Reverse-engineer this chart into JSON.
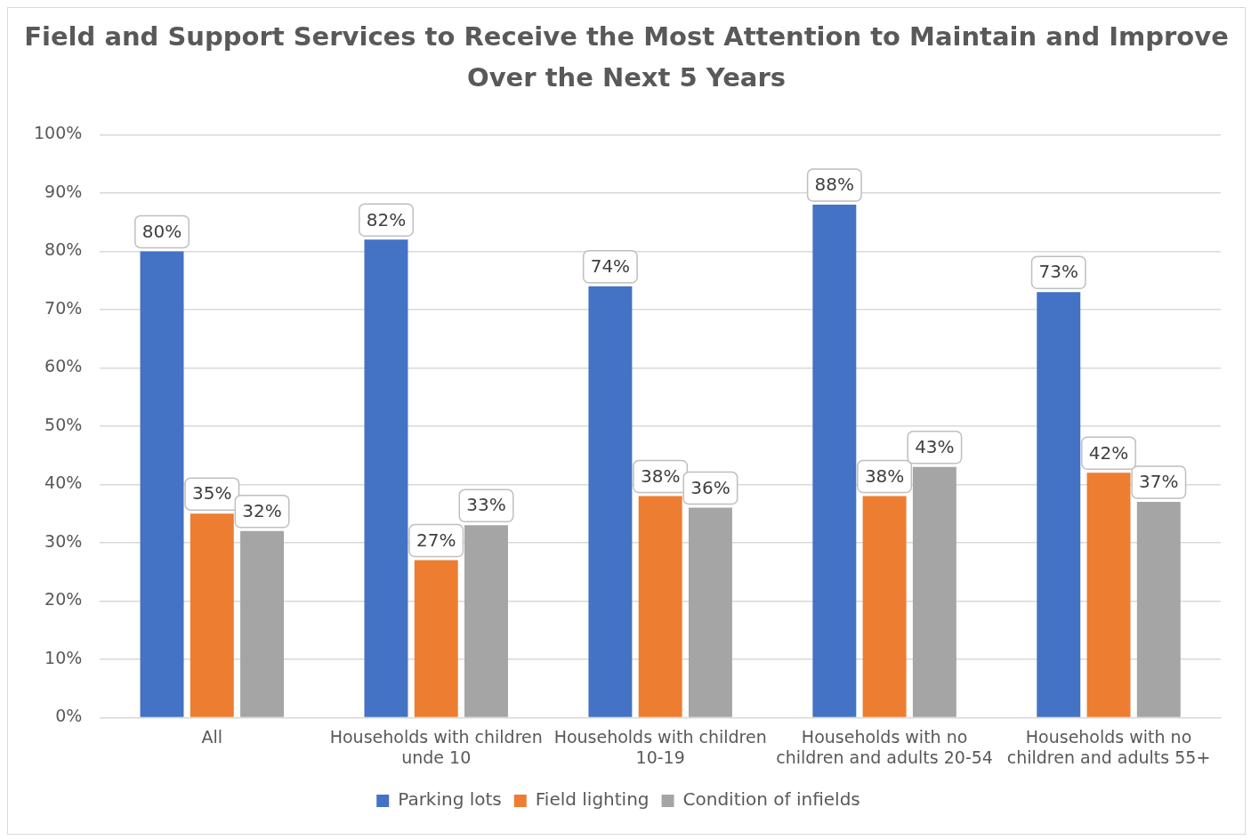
{
  "chart_data": {
    "type": "bar",
    "title": "Field and Support Services to Receive the Most Attention to Maintain and Improve Over the Next 5 Years",
    "categories": [
      "All",
      "Households with children unde 10",
      "Households with children 10-19",
      "Households with no children and adults 20-54",
      "Households with no children and adults 55+"
    ],
    "series": [
      {
        "name": "Parking lots",
        "color": "#4472c4",
        "values": [
          80,
          82,
          74,
          88,
          73
        ],
        "value_labels": [
          "80%",
          "82%",
          "74%",
          "88%",
          "73%"
        ]
      },
      {
        "name": "Field lighting",
        "color": "#ed7d31",
        "values": [
          35,
          27,
          38,
          38,
          42
        ],
        "value_labels": [
          "35%",
          "27%",
          "38%",
          "38%",
          "42%"
        ]
      },
      {
        "name": "Condition of infields",
        "color": "#a5a5a5",
        "values": [
          32,
          33,
          36,
          43,
          37
        ],
        "value_labels": [
          "32%",
          "33%",
          "36%",
          "43%",
          "37%"
        ]
      }
    ],
    "ylim": [
      0,
      100
    ],
    "yticks": [
      {
        "value": 0,
        "label": "0%"
      },
      {
        "value": 10,
        "label": "10%"
      },
      {
        "value": 20,
        "label": "20%"
      },
      {
        "value": 30,
        "label": "30%"
      },
      {
        "value": 40,
        "label": "40%"
      },
      {
        "value": 50,
        "label": "50%"
      },
      {
        "value": 60,
        "label": "60%"
      },
      {
        "value": 70,
        "label": "70%"
      },
      {
        "value": 80,
        "label": "80%"
      },
      {
        "value": 90,
        "label": "90%"
      },
      {
        "value": 100,
        "label": "100%"
      }
    ],
    "grid": "y",
    "legend": "bottom"
  }
}
